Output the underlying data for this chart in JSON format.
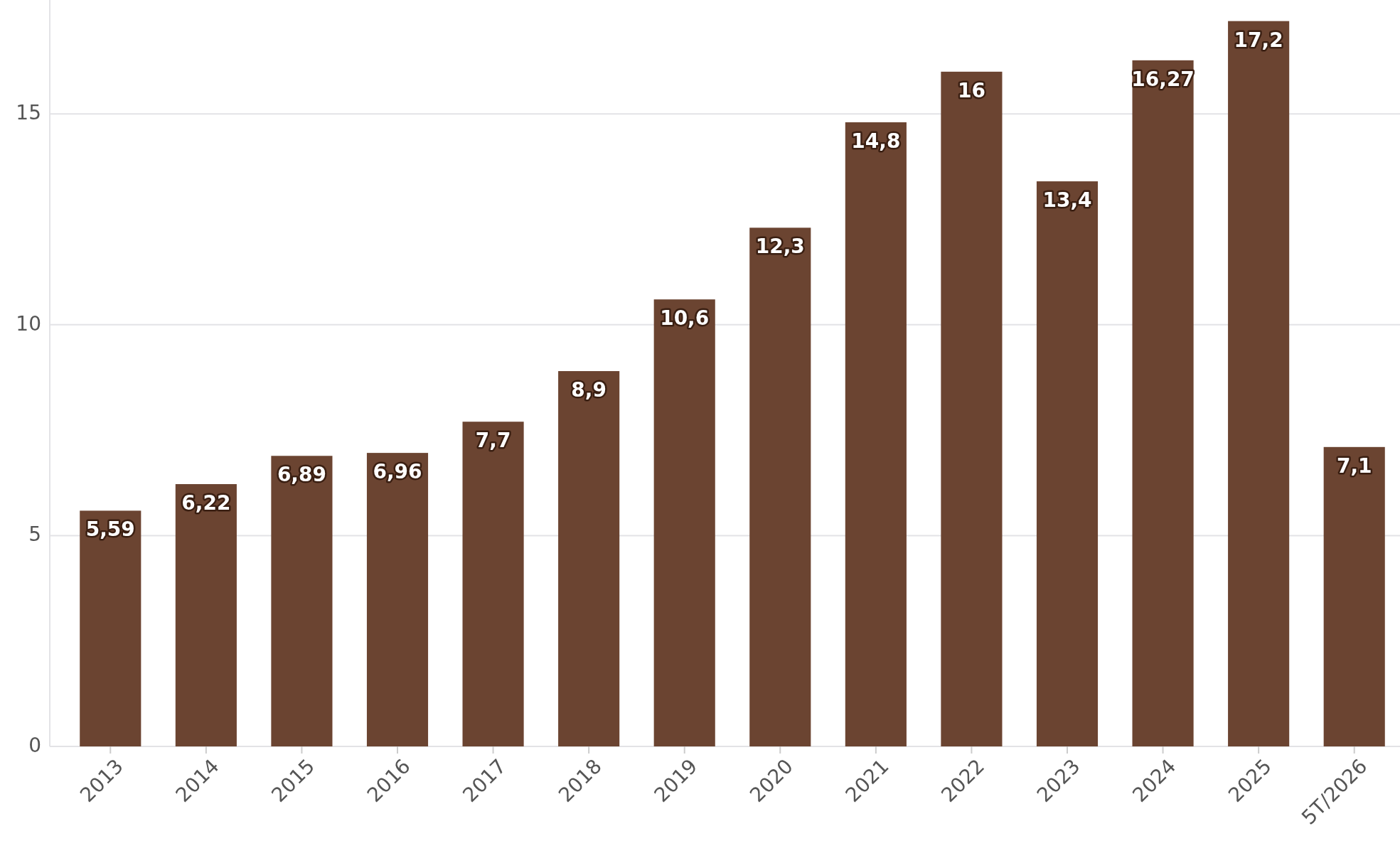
{
  "chart_data": {
    "type": "bar",
    "categories": [
      "2013",
      "2014",
      "2015",
      "2016",
      "2017",
      "2018",
      "2019",
      "2020",
      "2021",
      "2022",
      "2023",
      "2024",
      "2025",
      "5T/2026"
    ],
    "values": [
      5.59,
      6.22,
      6.89,
      6.96,
      7.7,
      8.9,
      10.6,
      12.3,
      14.8,
      16,
      13.4,
      16.27,
      17.2,
      7.1
    ],
    "value_labels": [
      "5,59",
      "6,22",
      "6,89",
      "6,96",
      "7,7",
      "8,9",
      "10,6",
      "12,3",
      "14,8",
      "16",
      "13,4",
      "16,27",
      "17,2",
      "7,1"
    ],
    "color": "#6b4431",
    "ylim": [
      0,
      17.7
    ],
    "yticks": [
      0,
      5,
      10,
      15
    ],
    "grid": "y"
  }
}
